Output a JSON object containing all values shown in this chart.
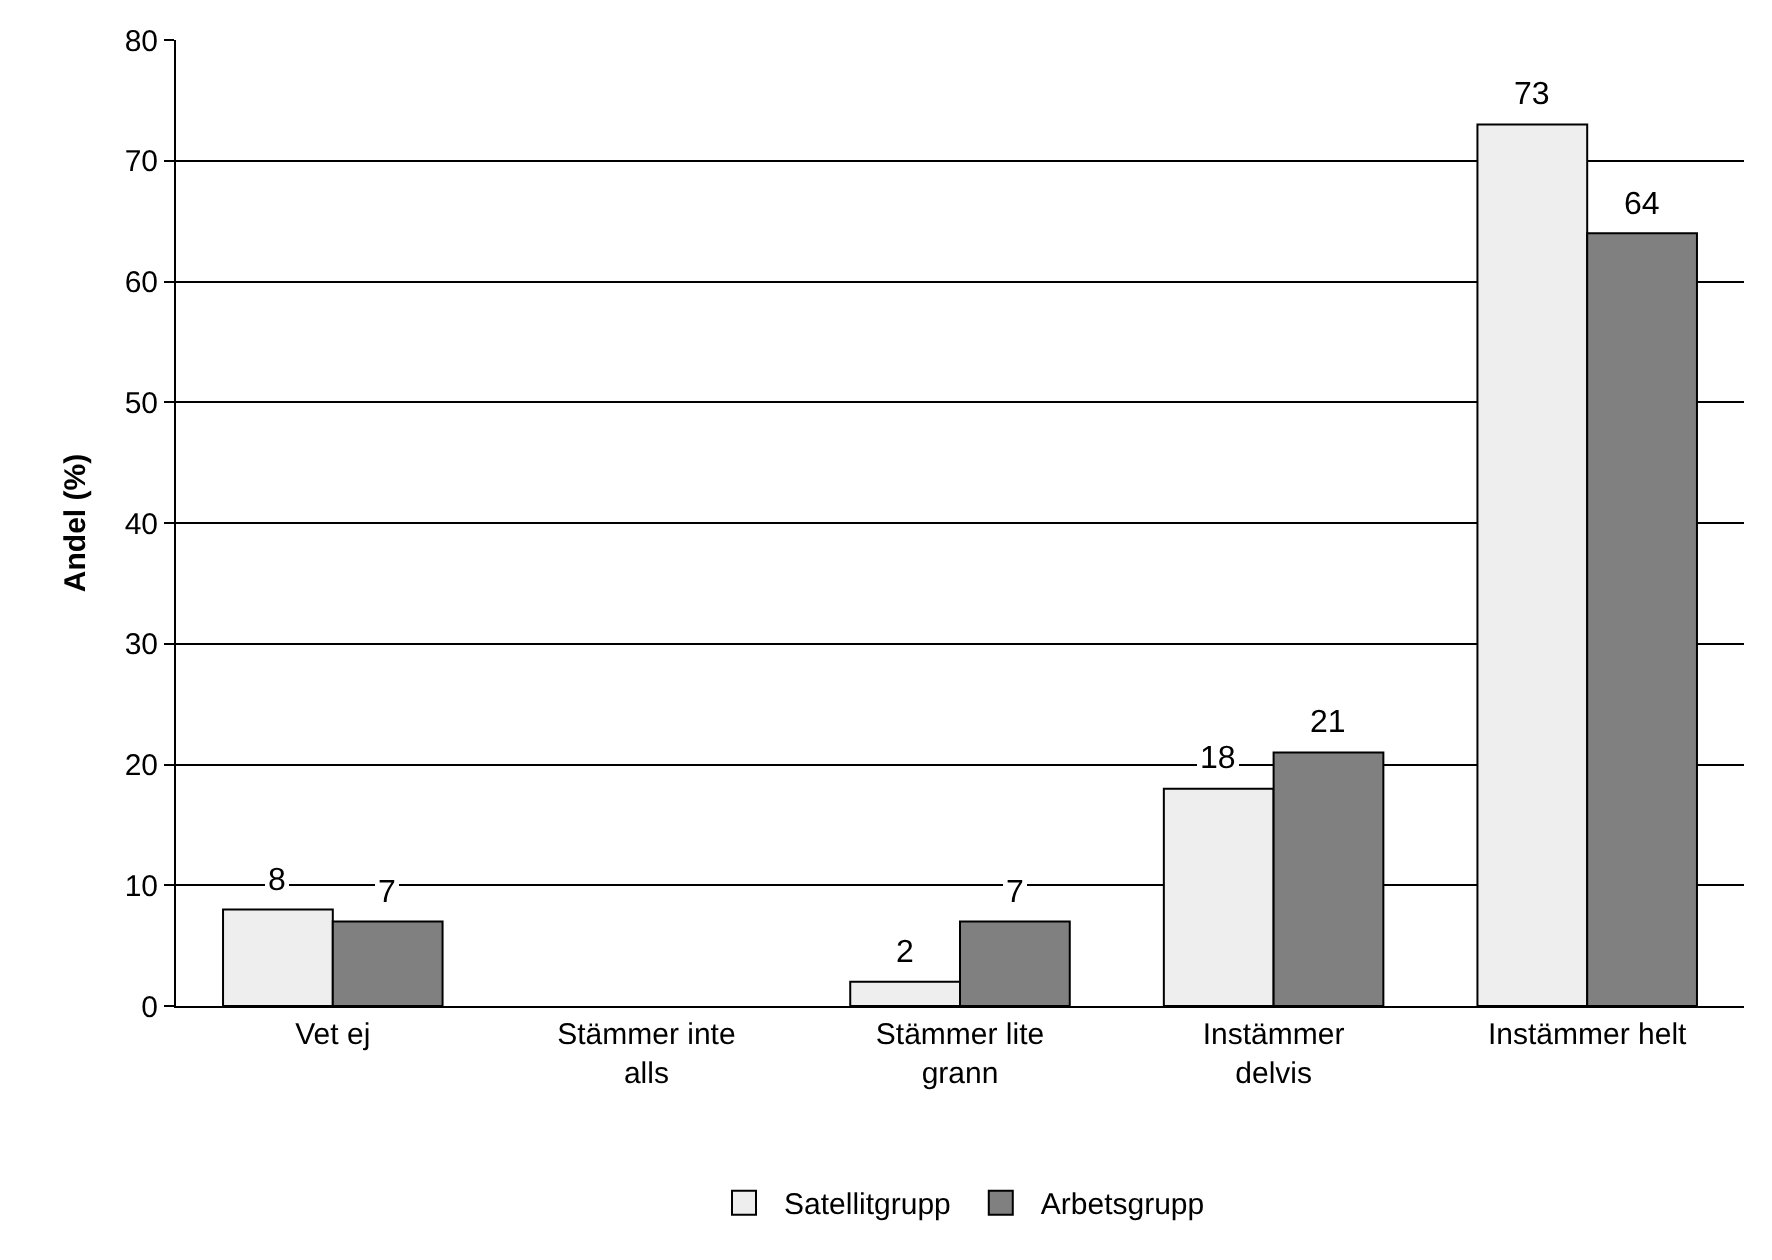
{
  "chart_data": {
    "type": "bar",
    "ylabel": "Andel (%)",
    "categories": [
      "Vet ej",
      "Stämmer inte alls",
      "Stämmer lite grann",
      "Instämmer delvis",
      "Instämmer helt"
    ],
    "series": [
      {
        "name": "Satellitgrupp",
        "color": "#eeeeee",
        "values": [
          8,
          null,
          2,
          18,
          73
        ]
      },
      {
        "name": "Arbetsgrupp",
        "color": "#808080",
        "values": [
          7,
          null,
          7,
          21,
          64
        ]
      }
    ],
    "ylim": [
      0,
      80
    ],
    "yticks": [
      0,
      10,
      20,
      30,
      40,
      50,
      60,
      70,
      80
    ],
    "grid": "y",
    "legend": "bottom",
    "data_labels": true
  }
}
